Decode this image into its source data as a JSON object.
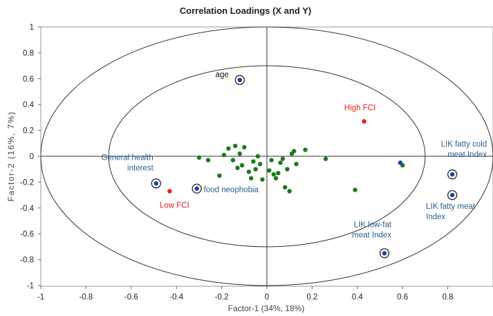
{
  "chart_data": {
    "type": "scatter",
    "title": "Correlation Loadings (X and Y)",
    "xlabel": "Factor-1 (34%, 18%)",
    "ylabel": "Factor-2 (16%, 7%)",
    "xlim": [
      -1,
      1
    ],
    "ylim": [
      -1,
      1
    ],
    "x_ticks": [
      "-1",
      "-0.8",
      "-0.6",
      "-0.4",
      "-0.2",
      "0",
      "0.2",
      "0.4",
      "0.6",
      "0.8"
    ],
    "y_ticks": [
      "1",
      "0.8",
      "0.6",
      "0.4",
      "0.2",
      "0",
      "-0.2",
      "-0.4",
      "-0.6",
      "-0.8",
      "-1"
    ],
    "correlation_circles": [
      1.0,
      0.7
    ],
    "colors": {
      "x_variables": "#1a7a1a",
      "y_variables": "#1f3fae",
      "fci": "#e8201c",
      "label_blue": "#2a5f8f",
      "label_red": "#e8201c",
      "label_black": "#111111"
    },
    "x_variables": [
      {
        "x": -0.3,
        "y": -0.01
      },
      {
        "x": -0.26,
        "y": -0.03
      },
      {
        "x": -0.21,
        "y": -0.15
      },
      {
        "x": -0.19,
        "y": 0.01
      },
      {
        "x": -0.17,
        "y": 0.06
      },
      {
        "x": -0.15,
        "y": -0.03
      },
      {
        "x": -0.14,
        "y": 0.08
      },
      {
        "x": -0.13,
        "y": -0.09
      },
      {
        "x": -0.12,
        "y": 0.02
      },
      {
        "x": -0.11,
        "y": -0.07
      },
      {
        "x": -0.1,
        "y": 0.07
      },
      {
        "x": -0.08,
        "y": -0.12
      },
      {
        "x": -0.07,
        "y": -0.17
      },
      {
        "x": -0.06,
        "y": -0.04
      },
      {
        "x": -0.05,
        "y": -0.1
      },
      {
        "x": -0.04,
        "y": 0.0
      },
      {
        "x": -0.03,
        "y": -0.06
      },
      {
        "x": -0.02,
        "y": -0.18
      },
      {
        "x": 0.01,
        "y": -0.11
      },
      {
        "x": 0.02,
        "y": -0.03
      },
      {
        "x": 0.03,
        "y": -0.14
      },
      {
        "x": 0.04,
        "y": -0.17
      },
      {
        "x": 0.05,
        "y": -0.13
      },
      {
        "x": 0.06,
        "y": -0.05
      },
      {
        "x": 0.07,
        "y": -0.02
      },
      {
        "x": 0.08,
        "y": -0.24
      },
      {
        "x": 0.09,
        "y": -0.1
      },
      {
        "x": 0.1,
        "y": -0.27
      },
      {
        "x": 0.11,
        "y": 0.02
      },
      {
        "x": 0.12,
        "y": 0.04
      },
      {
        "x": 0.13,
        "y": -0.06
      },
      {
        "x": 0.17,
        "y": 0.05
      },
      {
        "x": 0.26,
        "y": -0.02
      },
      {
        "x": 0.39,
        "y": -0.26
      },
      {
        "x": 0.6,
        "y": -0.07
      }
    ],
    "y_variables": [
      {
        "x": -0.12,
        "y": 0.59,
        "label": "age",
        "color": "label_black",
        "circled": true
      },
      {
        "x": -0.49,
        "y": -0.21,
        "label": "General health interest",
        "color": "label_blue",
        "circled": true
      },
      {
        "x": -0.31,
        "y": -0.25,
        "label": "food neophobia",
        "color": "label_blue",
        "circled": true
      },
      {
        "x": 0.52,
        "y": -0.75,
        "label": "LIK low-fat meat Index",
        "color": "label_blue",
        "circled": true
      },
      {
        "x": 0.82,
        "y": -0.14,
        "label": "LIK fatty cold meat Index",
        "color": "label_blue",
        "circled": true
      },
      {
        "x": 0.82,
        "y": -0.3,
        "label": "LIK fatty meat Index",
        "color": "label_blue",
        "circled": true
      },
      {
        "x": 0.59,
        "y": -0.05,
        "label": "",
        "color": "label_blue",
        "circled": false
      }
    ],
    "fci_points": [
      {
        "x": 0.43,
        "y": 0.27,
        "label": "High FCI"
      },
      {
        "x": -0.43,
        "y": -0.27,
        "label": "Low FCI"
      }
    ]
  }
}
